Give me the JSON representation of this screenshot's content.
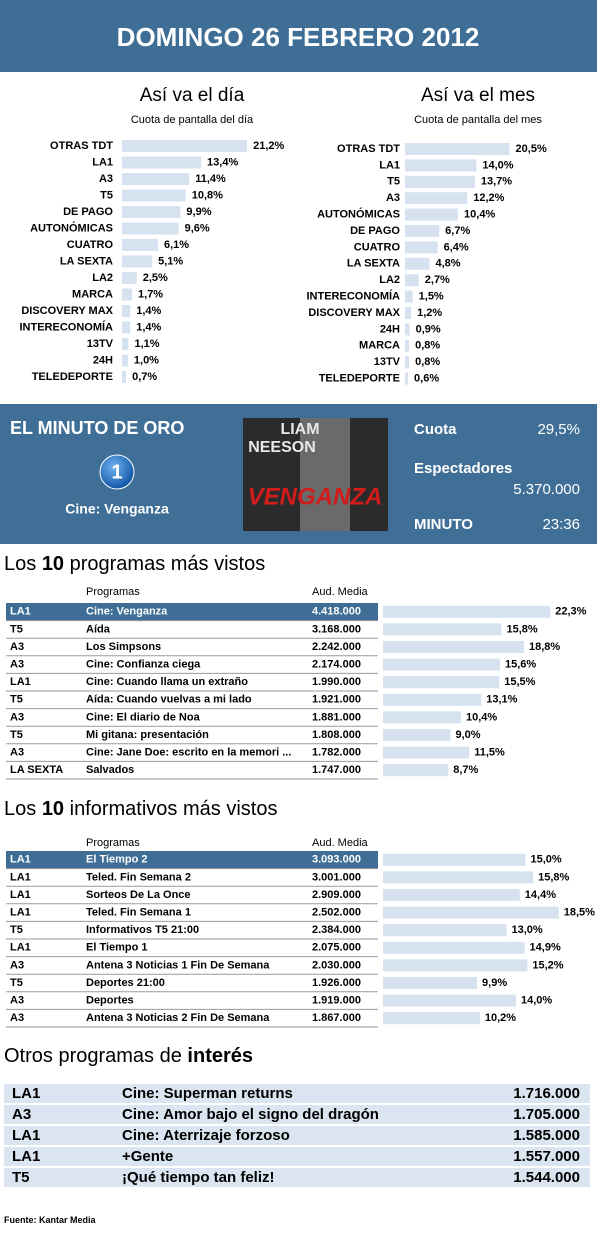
{
  "header": {
    "title": "DOMINGO 26 FEBRERO 2012"
  },
  "chart_data": [
    {
      "type": "bar",
      "orientation": "horizontal",
      "title": "Así va el día",
      "subtitle": "Cuota de pantalla del día",
      "color": "#d6e2ef",
      "categories": [
        "OTRAS TDT",
        "LA1",
        "A3",
        "T5",
        "DE PAGO",
        "AUTONÓMICAS",
        "CUATRO",
        "LA SEXTA",
        "LA2",
        "MARCA",
        "DISCOVERY MAX",
        "INTERECONOMÍA",
        "13TV",
        "24H",
        "TELEDEPORTE"
      ],
      "values": [
        21.2,
        13.4,
        11.4,
        10.8,
        9.9,
        9.6,
        6.1,
        5.1,
        2.5,
        1.7,
        1.4,
        1.4,
        1.1,
        1.0,
        0.7
      ],
      "value_labels": [
        "21,2%",
        "13,4%",
        "11,4%",
        "10,8%",
        "9,9%",
        "9,6%",
        "6,1%",
        "5,1%",
        "2,5%",
        "1,7%",
        "1,4%",
        "1,4%",
        "1,1%",
        "1,0%",
        "0,7%"
      ]
    },
    {
      "type": "bar",
      "orientation": "horizontal",
      "title": "Así va el mes",
      "subtitle": "Cuota de pantalla del mes",
      "color": "#d6e2ef",
      "categories": [
        "OTRAS TDT",
        "LA1",
        "T5",
        "A3",
        "AUTONÓMICAS",
        "DE PAGO",
        "CUATRO",
        "LA SEXTA",
        "LA2",
        "INTERECONOMÍA",
        "DISCOVERY MAX",
        "24H",
        "MARCA",
        "13TV",
        "TELEDEPORTE"
      ],
      "values": [
        20.5,
        14.0,
        13.7,
        12.2,
        10.4,
        6.7,
        6.4,
        4.8,
        2.7,
        1.5,
        1.2,
        0.9,
        0.8,
        0.8,
        0.6
      ],
      "value_labels": [
        "20,5%",
        "14,0%",
        "13,7%",
        "12,2%",
        "10,4%",
        "6,7%",
        "6,4%",
        "4,8%",
        "2,7%",
        "1,5%",
        "1,2%",
        "0,9%",
        "0,8%",
        "0,8%",
        "0,6%"
      ]
    }
  ],
  "minuto": {
    "title": "EL MINUTO DE ORO",
    "logo": "1",
    "program": "Cine: Venganza",
    "poster_top1": "LIAM",
    "poster_top2": "NEESON",
    "poster_title": "VENGANZA",
    "cuota_label": "Cuota",
    "cuota": "29,5%",
    "espectadores_label": "Espectadores",
    "espectadores": "5.370.000",
    "minuto_label": "MINUTO",
    "minuto": "23:36"
  },
  "top_programs": {
    "title": {
      "before": "Los ",
      "bold": "10",
      "after": " programas más vistos"
    },
    "headers": [
      "Programas",
      "Aud. Media"
    ],
    "color": "#d6e2ef",
    "rows": [
      {
        "channel": "LA1",
        "program": "Cine: Venganza",
        "audience": "4.418.000",
        "share": 22.3,
        "share_label": "22,3%"
      },
      {
        "channel": "T5",
        "program": "Aída",
        "audience": "3.168.000",
        "share": 15.8,
        "share_label": "15,8%"
      },
      {
        "channel": "A3",
        "program": "Los Simpsons",
        "audience": "2.242.000",
        "share": 18.8,
        "share_label": "18,8%"
      },
      {
        "channel": "A3",
        "program": "Cine: Confianza ciega",
        "audience": "2.174.000",
        "share": 15.6,
        "share_label": "15,6%"
      },
      {
        "channel": "LA1",
        "program": "Cine: Cuando llama un extraño",
        "audience": "1.990.000",
        "share": 15.5,
        "share_label": "15,5%"
      },
      {
        "channel": "T5",
        "program": "Aída: Cuando vuelvas a mi lado",
        "audience": "1.921.000",
        "share": 13.1,
        "share_label": "13,1%"
      },
      {
        "channel": "A3",
        "program": "Cine: El diario de Noa",
        "audience": "1.881.000",
        "share": 10.4,
        "share_label": "10,4%"
      },
      {
        "channel": "T5",
        "program": "Mi gitana: presentación",
        "audience": "1.808.000",
        "share": 9.0,
        "share_label": "9,0%"
      },
      {
        "channel": "A3",
        "program": "Cine: Jane Doe: escrito en la memori ...",
        "audience": "1.782.000",
        "share": 11.5,
        "share_label": "11,5%"
      },
      {
        "channel": "LA SEXTA",
        "program": "Salvados",
        "audience": "1.747.000",
        "share": 8.7,
        "share_label": "8,7%"
      }
    ]
  },
  "top_news": {
    "title": {
      "before": "Los ",
      "bold": "10",
      "after": " informativos más vistos"
    },
    "headers": [
      "Programas",
      "Aud. Media"
    ],
    "color": "#d6e2ef",
    "rows": [
      {
        "channel": "LA1",
        "program": "El Tiempo 2",
        "audience": "3.093.000",
        "share": 15.0,
        "share_label": "15,0%"
      },
      {
        "channel": "LA1",
        "program": "Teled. Fin Semana 2",
        "audience": "3.001.000",
        "share": 15.8,
        "share_label": "15,8%"
      },
      {
        "channel": "LA1",
        "program": "Sorteos De La Once",
        "audience": "2.909.000",
        "share": 14.4,
        "share_label": "14,4%"
      },
      {
        "channel": "LA1",
        "program": "Teled. Fin Semana 1",
        "audience": "2.502.000",
        "share": 18.5,
        "share_label": "18,5%"
      },
      {
        "channel": "T5",
        "program": "Informativos T5 21:00",
        "audience": "2.384.000",
        "share": 13.0,
        "share_label": "13,0%"
      },
      {
        "channel": "LA1",
        "program": "El Tiempo 1",
        "audience": "2.075.000",
        "share": 14.9,
        "share_label": "14,9%"
      },
      {
        "channel": "A3",
        "program": "Antena 3 Noticias 1 Fin De Semana",
        "audience": "2.030.000",
        "share": 15.2,
        "share_label": "15,2%"
      },
      {
        "channel": "T5",
        "program": "Deportes 21:00",
        "audience": "1.926.000",
        "share": 9.9,
        "share_label": "9,9%"
      },
      {
        "channel": "A3",
        "program": "Deportes",
        "audience": "1.919.000",
        "share": 14.0,
        "share_label": "14,0%"
      },
      {
        "channel": "A3",
        "program": "Antena 3 Noticias 2 Fin De Semana",
        "audience": "1.867.000",
        "share": 10.2,
        "share_label": "10,2%"
      }
    ]
  },
  "others": {
    "title": {
      "before": "Otros programas de ",
      "bold": "interés"
    },
    "rows": [
      {
        "channel": "LA1",
        "program": "Cine: Superman returns",
        "audience": "1.716.000"
      },
      {
        "channel": "A3",
        "program": "Cine: Amor bajo el signo del dragón",
        "audience": "1.705.000"
      },
      {
        "channel": "LA1",
        "program": "Cine: Aterrizaje forzoso",
        "audience": "1.585.000"
      },
      {
        "channel": "LA1",
        "program": "+Gente",
        "audience": "1.557.000"
      },
      {
        "channel": "T5",
        "program": "¡Qué tiempo tan feliz!",
        "audience": "1.544.000"
      }
    ]
  },
  "footer": {
    "label": "Fuente:",
    "source": "Kantar Media"
  }
}
